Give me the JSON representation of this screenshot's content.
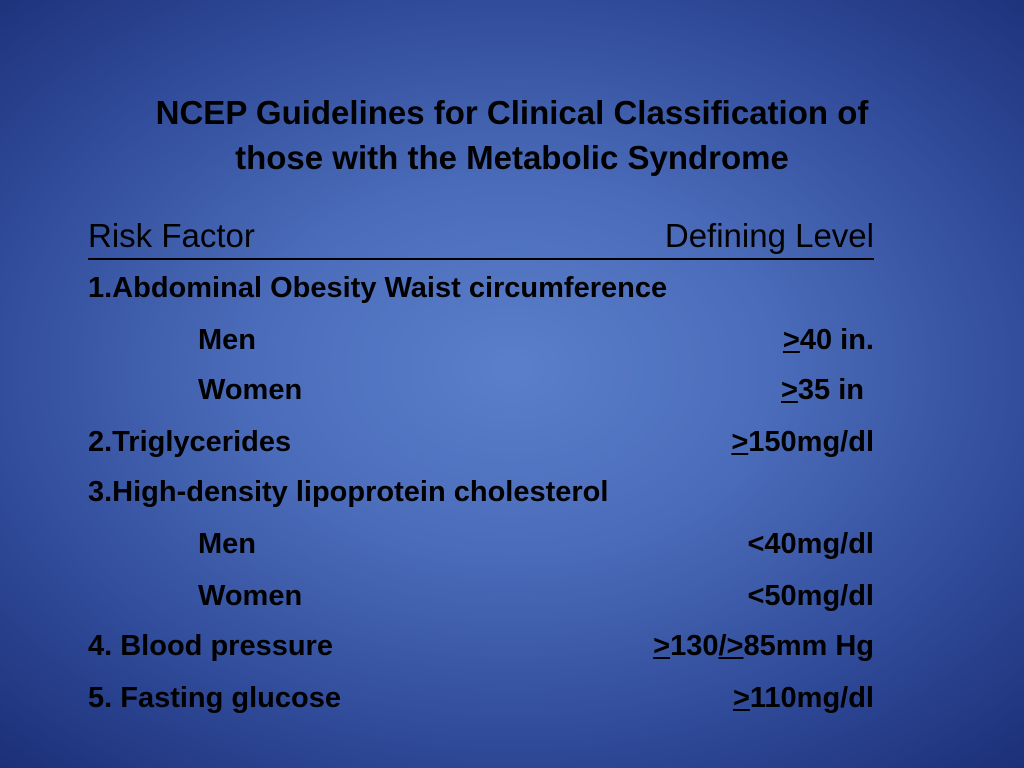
{
  "title": {
    "line1": "NCEP Guidelines for Clinical Classification of",
    "line2": "those with the Metabolic Syndrome"
  },
  "header": {
    "left": "Risk Factor",
    "right": "Defining Level"
  },
  "rows": [
    {
      "label": "1.Abdominal Obesity Waist circumference",
      "value": ""
    },
    {
      "label": "Men",
      "value_prefix": ">",
      "value": "40 in."
    },
    {
      "label": "Women",
      "value_prefix": ">",
      "value": "35 in"
    },
    {
      "label": "2.Triglycerides",
      "value_prefix": ">",
      "value": "150mg/dl"
    },
    {
      "label": "3.High-density lipoprotein cholesterol",
      "value": ""
    },
    {
      "label": "Men",
      "value": "<40mg/dl"
    },
    {
      "label": "Women",
      "value": "<50mg/dl"
    },
    {
      "label": "4. Blood pressure",
      "value_prefix": ">",
      "value_mid": "130/",
      "value_prefix2": ">",
      "value": "85mm Hg"
    },
    {
      "label": "5. Fasting glucose",
      "value_prefix": ">",
      "value": "110mg/dl"
    }
  ]
}
